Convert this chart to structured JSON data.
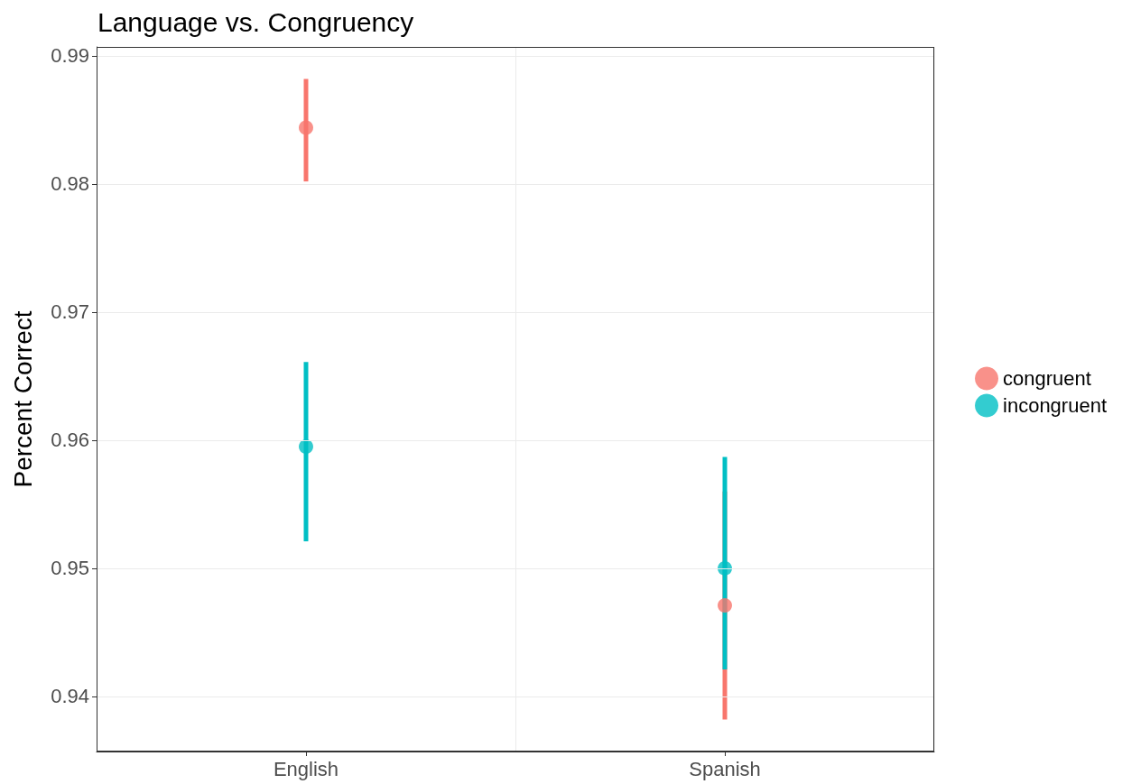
{
  "chart_data": {
    "type": "scatter",
    "title": "Language vs. Congruency",
    "ylabel": "Percent Correct",
    "categories": [
      "English",
      "Spanish"
    ],
    "series": [
      {
        "name": "congruent",
        "color": "#f8766d",
        "values": [
          0.9844,
          0.9471
        ],
        "errors": [
          [
            0.9802,
            0.9882
          ],
          [
            0.9382,
            0.956
          ]
        ]
      },
      {
        "name": "incongruent",
        "color": "#00bfc4",
        "values": [
          0.9595,
          0.95
        ],
        "errors": [
          [
            0.9521,
            0.9661
          ],
          [
            0.9421,
            0.9587
          ]
        ]
      }
    ],
    "ylim": [
      0.9357,
      0.9907
    ],
    "yticks": [
      0.94,
      0.95,
      0.96,
      0.97,
      0.98,
      0.99
    ],
    "grid": true,
    "legend": "right",
    "marker": "circle"
  }
}
